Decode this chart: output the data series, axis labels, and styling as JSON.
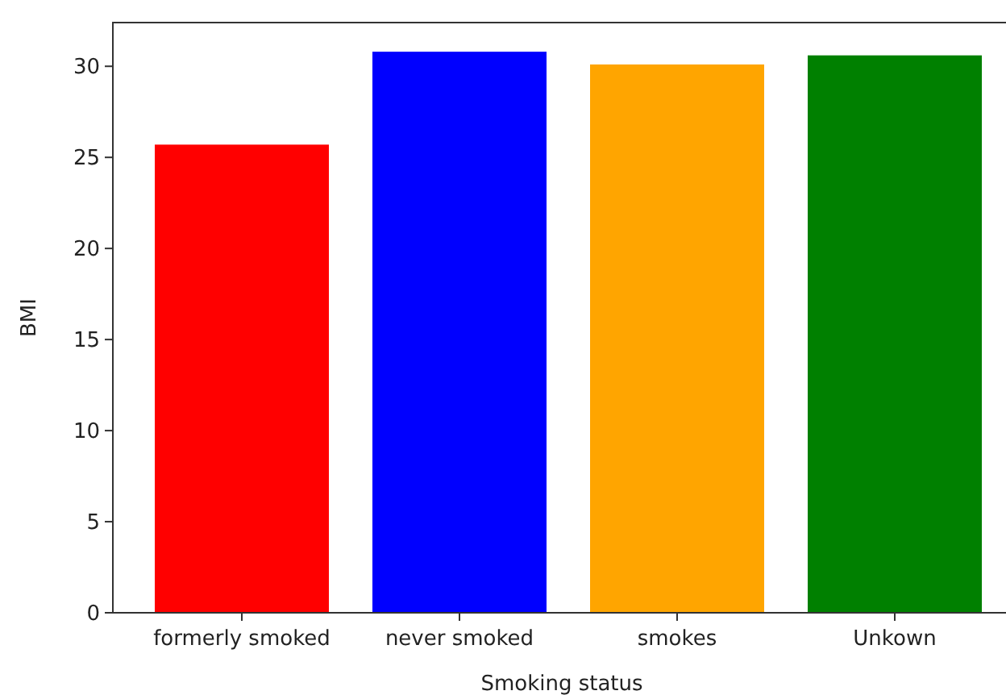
{
  "chart_data": {
    "type": "bar",
    "xlabel": "Smoking status",
    "ylabel": "BMI",
    "categories": [
      "formerly smoked",
      "never smoked",
      "smokes",
      "Unkown"
    ],
    "values": [
      25.7,
      30.8,
      30.1,
      30.6
    ],
    "colors": [
      "#ff0000",
      "#0000ff",
      "#ffa500",
      "#008000"
    ],
    "ylim": [
      0,
      32.4
    ],
    "yticks": [
      0,
      5,
      10,
      15,
      20,
      25,
      30
    ]
  }
}
